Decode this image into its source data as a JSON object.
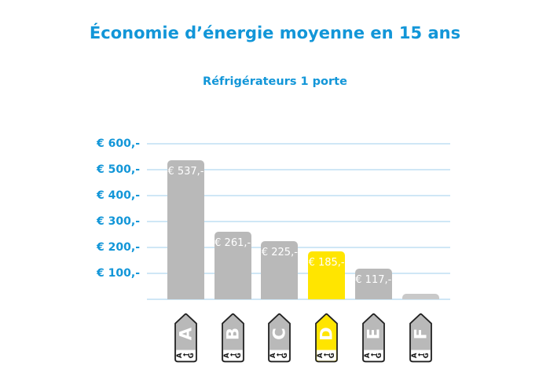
{
  "page": {
    "title": "Économie d’énergie moyenne en 15 ans",
    "subtitle": "Réfrigérateurs 1 porte"
  },
  "colors": {
    "accent_blue": "#1296d8",
    "gridline_blue": "#cfe7f6",
    "bar_gray": "#b9b9b9",
    "bar_gray_light": "#c9c9c9",
    "highlight_yellow": "#ffe500",
    "bar_label_white": "#ffffff",
    "tag_border": "#222222"
  },
  "chart_data": {
    "type": "bar",
    "title": "Économie d’énergie moyenne en 15 ans",
    "subtitle": "Réfrigérateurs 1 porte",
    "categories": [
      "A",
      "B",
      "C",
      "D",
      "E",
      "F"
    ],
    "values": [
      537,
      261,
      225,
      185,
      117,
      20
    ],
    "bar_labels": [
      "€ 537,-",
      "€ 261,-",
      "€ 225,-",
      "€ 185,-",
      "€ 117,-",
      ""
    ],
    "bar_colors": [
      "#b9b9b9",
      "#b9b9b9",
      "#b9b9b9",
      "#ffe500",
      "#b9b9b9",
      "#c9c9c9"
    ],
    "highlight_index": 3,
    "ylim": [
      0,
      600
    ],
    "grid": true,
    "legend": "none",
    "y_ticks": [
      {
        "value": 600,
        "label": "€ 600,-"
      },
      {
        "value": 500,
        "label": "€ 500,-"
      },
      {
        "value": 400,
        "label": "€ 400,-"
      },
      {
        "value": 300,
        "label": "€ 300,-"
      },
      {
        "value": 200,
        "label": "€ 200,-"
      },
      {
        "value": 100,
        "label": "€ 100,-"
      }
    ],
    "x_axis_tags": {
      "style": "eu-energy-class-arrow",
      "letters": [
        "A",
        "B",
        "C",
        "D",
        "E",
        "F"
      ],
      "scale_from": "A",
      "scale_arrow": "←",
      "scale_to": "G"
    }
  }
}
